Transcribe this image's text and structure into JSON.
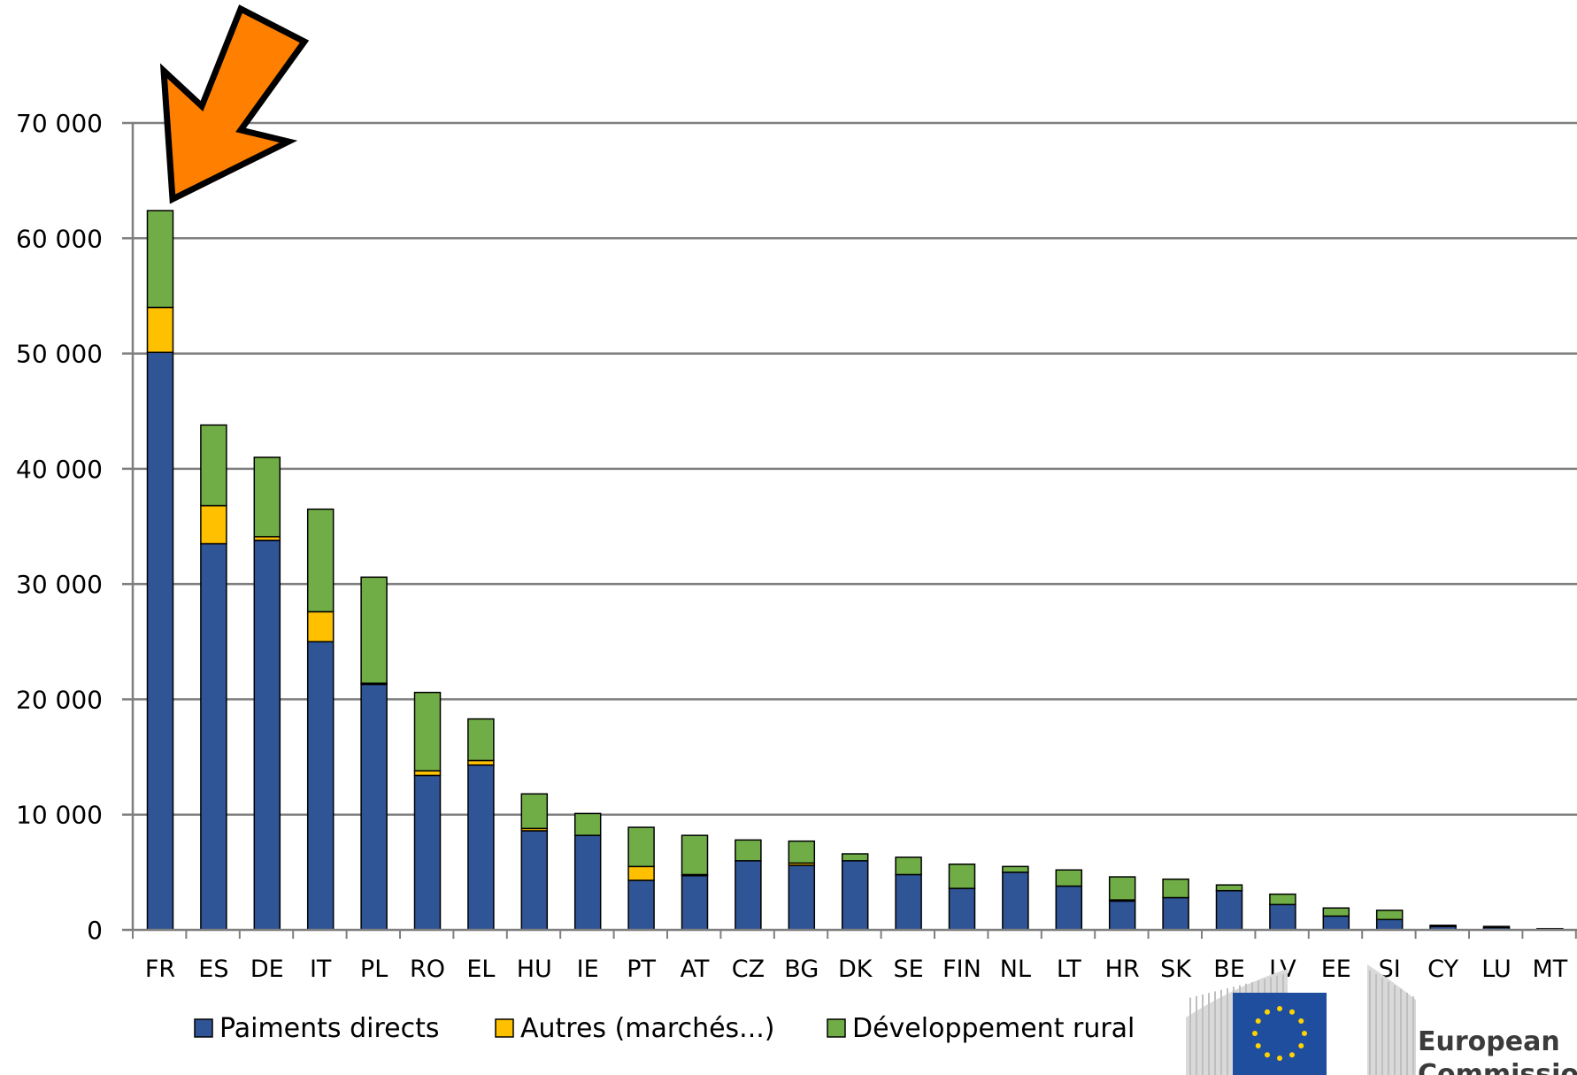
{
  "colors": {
    "paiements_directs": "#2F5597",
    "autres": "#FFC000",
    "developpement_rural": "#70AD47",
    "gridline": "#7F7F7F",
    "arrow": "#FF8000",
    "eu_blue": "#1F4E9F",
    "eu_star": "#FFD200"
  },
  "icons": {
    "arrow": "down-left-arrow-icon",
    "logo": "european-commission-logo"
  },
  "logo": {
    "line1": "European",
    "line2": "Commission"
  },
  "chart_data": {
    "type": "bar",
    "stacked": true,
    "categories": [
      "FR",
      "ES",
      "DE",
      "IT",
      "PL",
      "RO",
      "EL",
      "HU",
      "IE",
      "PT",
      "AT",
      "CZ",
      "BG",
      "DK",
      "SE",
      "FIN",
      "NL",
      "LT",
      "HR",
      "SK",
      "BE",
      "LV",
      "EE",
      "SI",
      "CY",
      "LU",
      "MT"
    ],
    "series": [
      {
        "name": "Paiments directs",
        "values": [
          50100,
          33500,
          33800,
          25000,
          21300,
          13400,
          14300,
          8600,
          8200,
          4300,
          4700,
          6000,
          5600,
          6000,
          4800,
          3600,
          5000,
          3800,
          2500,
          2800,
          3400,
          2200,
          1200,
          900,
          300,
          200,
          50
        ]
      },
      {
        "name": "Autres (marchés...)",
        "values": [
          3900,
          3300,
          300,
          2600,
          100,
          400,
          400,
          200,
          0,
          1200,
          100,
          0,
          200,
          0,
          0,
          0,
          0,
          0,
          100,
          0,
          0,
          0,
          0,
          0,
          0,
          0,
          0
        ]
      },
      {
        "name": "Développement rural",
        "values": [
          8400,
          7000,
          6900,
          8900,
          9200,
          6800,
          3600,
          3000,
          1900,
          3400,
          3400,
          1800,
          1900,
          600,
          1500,
          2100,
          500,
          1400,
          2000,
          1600,
          500,
          900,
          700,
          800,
          100,
          100,
          50
        ]
      }
    ],
    "ylim": [
      0,
      70000
    ],
    "yticks": [
      0,
      10000,
      20000,
      30000,
      40000,
      50000,
      60000,
      70000
    ],
    "ytick_labels": [
      "0",
      "10 000",
      "20 000",
      "30 000",
      "40 000",
      "50 000",
      "60 000",
      "70 000"
    ],
    "grid": true,
    "legend_position": "bottom-left",
    "annotation": "arrow pointing at FR"
  }
}
